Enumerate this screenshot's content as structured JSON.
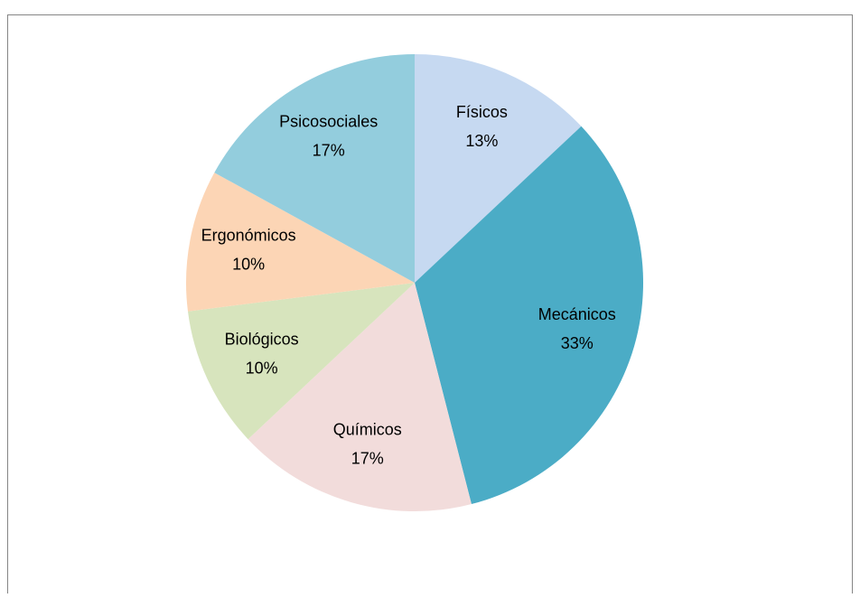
{
  "chart_data": {
    "type": "pie",
    "categories": [
      "Físicos",
      "Mecánicos",
      "Químicos",
      "Biológicos",
      "Ergonómicos",
      "Psicosociales"
    ],
    "values": [
      13,
      33,
      17,
      10,
      10,
      17
    ],
    "value_labels": [
      "13%",
      "33%",
      "17%",
      "10%",
      "10%",
      "17%"
    ],
    "colors": [
      "#c6d9f1",
      "#4bacc6",
      "#f2dcdb",
      "#d7e4bd",
      "#fcd5b5",
      "#93cddd"
    ]
  }
}
